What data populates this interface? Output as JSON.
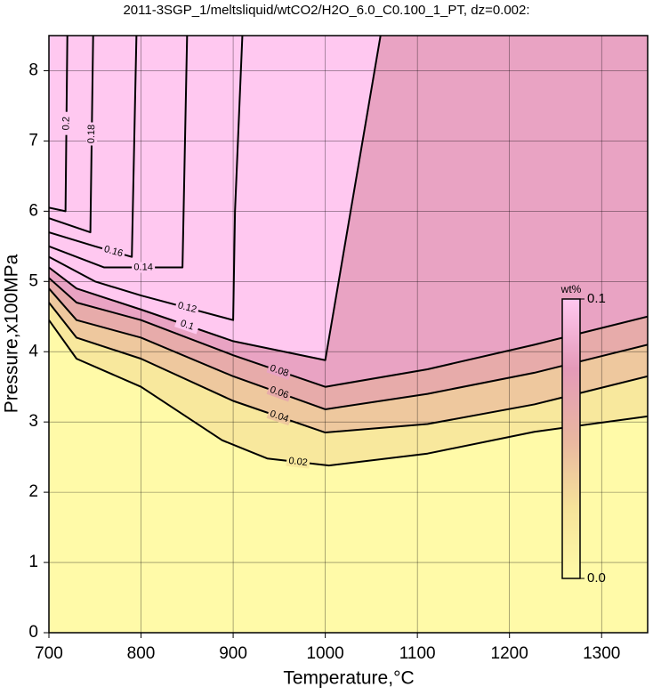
{
  "chart_data": {
    "type": "contour",
    "title": "2011-3SGP_1/meltsliquid/wtCO2/H2O_6.0_C0.100_1_PT, dz=0.002:",
    "x_label": "Temperature,°C",
    "y_label": "Pressure,x100MPa",
    "xlim": [
      700,
      1350
    ],
    "ylim": [
      0,
      8.5
    ],
    "xticks": [
      700,
      800,
      900,
      1000,
      1100,
      1200,
      1300
    ],
    "yticks": [
      0,
      1,
      2,
      3,
      4,
      5,
      6,
      7,
      8
    ],
    "grid": true,
    "contours": [
      {
        "level": 0.02,
        "x": [
          700,
          730,
          800,
          888,
          937,
          1004,
          1111,
          1227,
          1350
        ],
        "y": [
          4.45,
          3.9,
          3.5,
          2.74,
          2.48,
          2.38,
          2.55,
          2.86,
          3.08
        ]
      },
      {
        "level": 0.04,
        "x": [
          700,
          730,
          800,
          900,
          1000,
          1111,
          1227,
          1350
        ],
        "y": [
          4.7,
          4.2,
          3.9,
          3.3,
          2.85,
          2.97,
          3.25,
          3.65
        ]
      },
      {
        "level": 0.06,
        "x": [
          700,
          730,
          800,
          900,
          1000,
          1111,
          1227,
          1350
        ],
        "y": [
          4.9,
          4.45,
          4.2,
          3.65,
          3.18,
          3.4,
          3.7,
          4.1
        ]
      },
      {
        "level": 0.08,
        "x": [
          700,
          730,
          800,
          900,
          1000,
          1111,
          1227,
          1350
        ],
        "y": [
          5.05,
          4.7,
          4.45,
          3.95,
          3.5,
          3.75,
          4.1,
          4.5
        ]
      },
      {
        "level": 0.1,
        "x": [
          700,
          730,
          800,
          900,
          1000,
          1060
        ],
        "y": [
          5.2,
          4.9,
          4.6,
          4.15,
          3.88,
          8.5
        ]
      },
      {
        "level": 0.12,
        "x": [
          700,
          750,
          800,
          900,
          902,
          910
        ],
        "y": [
          5.35,
          5.0,
          4.8,
          4.45,
          6.0,
          8.5
        ]
      },
      {
        "level": 0.14,
        "x": [
          700,
          760,
          845,
          850
        ],
        "y": [
          5.5,
          5.2,
          5.2,
          8.5
        ]
      },
      {
        "level": 0.16,
        "x": [
          700,
          750,
          790,
          795
        ],
        "y": [
          5.7,
          5.5,
          5.35,
          8.5
        ]
      },
      {
        "level": 0.18,
        "x": [
          700,
          745,
          748
        ],
        "y": [
          5.9,
          5.7,
          8.5
        ]
      },
      {
        "level": 0.2,
        "x": [
          700,
          718,
          720
        ],
        "y": [
          6.05,
          6.0,
          8.5
        ]
      }
    ],
    "colorbar": {
      "title": "wt%",
      "lim": [
        0,
        0.1
      ],
      "colors": [
        "#fffaa8",
        "#f6e39a",
        "#e9b6a0",
        "#e49ab8",
        "#ffc8f0"
      ],
      "ticks": [
        {
          "value": 0,
          "label": "0.0"
        },
        {
          "value": 0.1,
          "label": "0.1"
        }
      ]
    }
  }
}
